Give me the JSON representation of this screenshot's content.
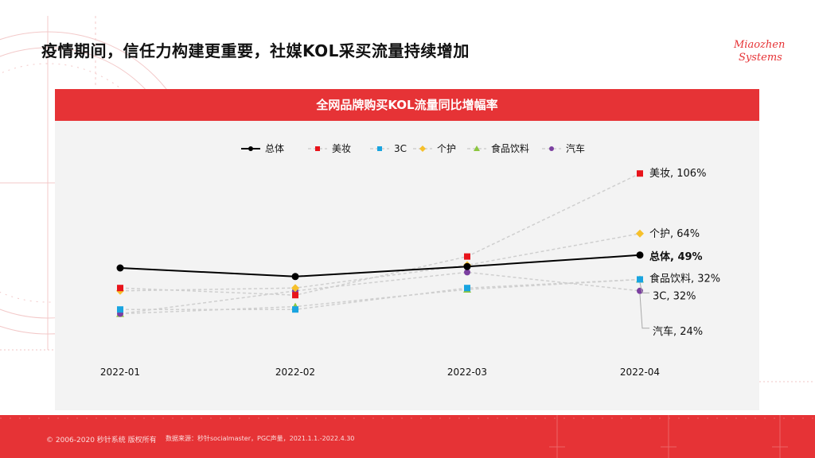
{
  "page_title": "疫情期间，信任力构建更重要，社媒KOL采买流量持续增加",
  "logo": {
    "line1": "Miaozhen",
    "line2": "Systems"
  },
  "footer": {
    "copyright": "© 2006-2020 秒针系统 版权所有",
    "source": "数据来源：秒针socialmaster，PGC声量，2021.1.1.-2022.4.30"
  },
  "colors": {
    "accent": "#e63336",
    "total": "#000000",
    "beauty": "#e8141b",
    "tech": "#19a4e0",
    "personal_care": "#f6c02b",
    "food": "#8cc63f",
    "auto": "#7b3fa0",
    "dashed": "#cfcfcf"
  },
  "chart_data": {
    "type": "line",
    "title": "全网品牌购买KOL流量同比增幅率",
    "categories": [
      "2022-01",
      "2022-02",
      "2022-03",
      "2022-04"
    ],
    "series": [
      {
        "name": "总体",
        "key": "total",
        "values": [
          40,
          34,
          41,
          49
        ],
        "end_label": "总体, 49%",
        "style": "solid",
        "marker": "circle"
      },
      {
        "name": "美妆",
        "key": "beauty",
        "values": [
          26,
          21,
          48,
          106
        ],
        "end_label": "美妆, 106%",
        "style": "dashed",
        "marker": "square"
      },
      {
        "name": "3C",
        "key": "tech",
        "values": [
          11,
          11,
          26,
          32
        ],
        "end_label": "3C, 32%",
        "style": "dashed",
        "marker": "square"
      },
      {
        "name": "个护",
        "key": "personal_care",
        "values": [
          24,
          26,
          42,
          64
        ],
        "end_label": "个护, 64%",
        "style": "dashed",
        "marker": "diamond"
      },
      {
        "name": "食品饮料",
        "key": "food",
        "values": [
          8,
          13,
          25,
          32
        ],
        "end_label": "食品饮料, 32%",
        "style": "dashed",
        "marker": "triangle"
      },
      {
        "name": "汽车",
        "key": "auto",
        "values": [
          8,
          24,
          37,
          24
        ],
        "end_label": "汽车, 24%",
        "style": "dashed",
        "marker": "circle"
      }
    ],
    "legend_position": "top"
  }
}
